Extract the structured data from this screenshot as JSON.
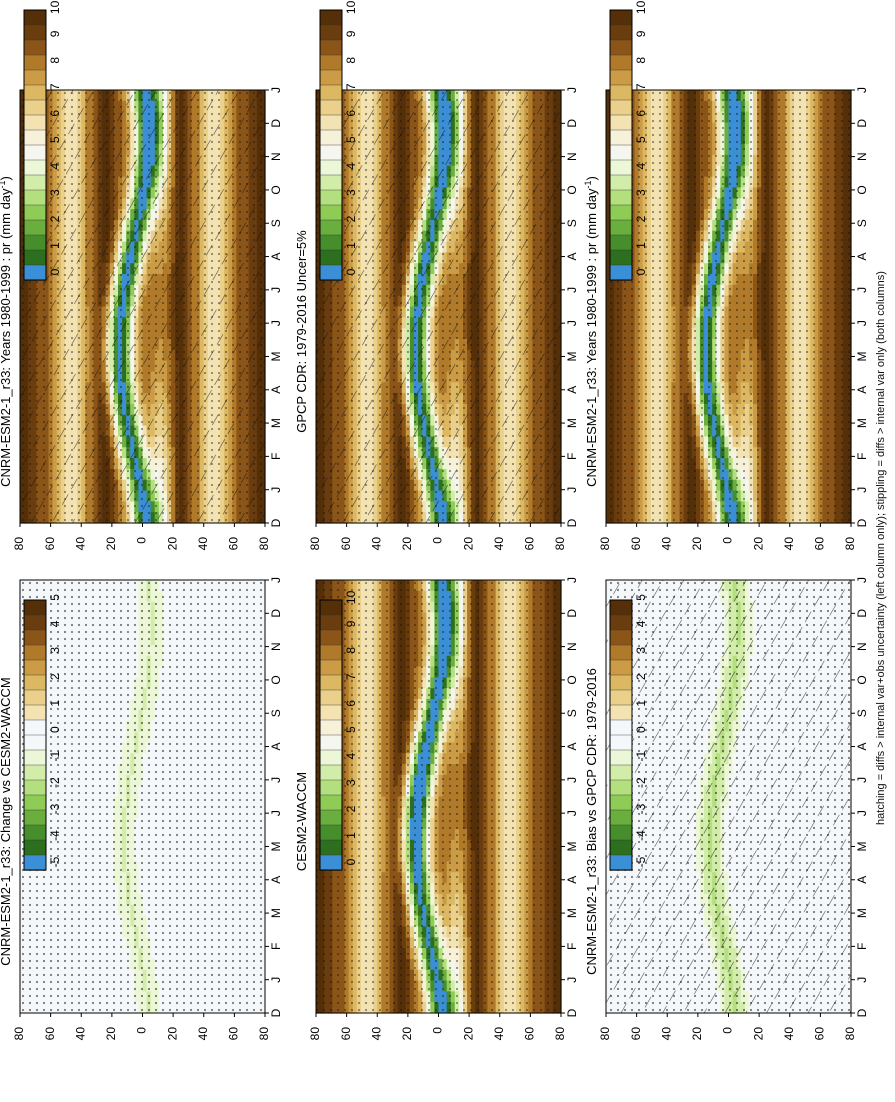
{
  "footnote": "hatching = diffs > internal var+obs uncertainty (left column only); stippling = diffs > internal var only (both columns)",
  "axes": {
    "months": [
      "D",
      "J",
      "F",
      "M",
      "A",
      "M",
      "J",
      "J",
      "A",
      "S",
      "O",
      "N",
      "D",
      "J"
    ],
    "lat_ticks": [
      "80",
      "60",
      "40",
      "20",
      "0",
      "20",
      "40",
      "60",
      "80"
    ]
  },
  "palettes": {
    "precip": [
      "#542f08",
      "#6a3d0f",
      "#8c5518",
      "#b07a2a",
      "#cb9c45",
      "#ddb862",
      "#ead08a",
      "#f3e2b2",
      "#f8f1d9",
      "#f6f6f0",
      "#ecf7d7",
      "#d2edaa",
      "#b3df7e",
      "#8fcc55",
      "#6aae3e",
      "#468e2c",
      "#2c6f1e",
      "#3b8fd6"
    ],
    "diff": [
      "#542f08",
      "#6a3d0f",
      "#8c5518",
      "#b07a2a",
      "#cb9c45",
      "#ddb862",
      "#ead08a",
      "#f3e2b2",
      "#f5f8fb",
      "#f5f8fb",
      "#ecf7d7",
      "#d2edaa",
      "#b3df7e",
      "#8fcc55",
      "#6aae3e",
      "#468e2c",
      "#2c6f1e",
      "#3b8fd6"
    ]
  },
  "chart_data": [
    {
      "type": "heatmap",
      "title": "CNRM-ESM2-1_r33: Years 1980-1999 : pr (mm day",
      "title_sup": "-1",
      "title_end": ")",
      "x": [
        "D",
        "J",
        "F",
        "M",
        "A",
        "M",
        "J",
        "J",
        "A",
        "S",
        "O",
        "N",
        "D",
        "J"
      ],
      "colorbar_ticks": [
        "0",
        "1",
        "2",
        "3",
        "4",
        "5",
        "6",
        "7",
        "8",
        "9",
        "10"
      ],
      "palette": "precip",
      "hatching": true,
      "stippling": true
    },
    {
      "type": "heatmap",
      "title": "CNRM-ESM2-1_r33: Years 1980-1999 : pr (mm day",
      "title_sup": "-1",
      "title_end": ")",
      "x": [
        "D",
        "J",
        "F",
        "M",
        "A",
        "M",
        "J",
        "J",
        "A",
        "S",
        "O",
        "N",
        "D",
        "J"
      ],
      "colorbar_ticks": [
        "0",
        "1",
        "2",
        "3",
        "4",
        "5",
        "6",
        "7",
        "8",
        "9",
        "10"
      ],
      "palette": "precip",
      "hatching": false,
      "stippling": true
    },
    {
      "type": "heatmap",
      "title": "GPCP CDR: 1979-2016 Uncer=5%",
      "x": [
        "D",
        "J",
        "F",
        "M",
        "A",
        "M",
        "J",
        "J",
        "A",
        "S",
        "O",
        "N",
        "D",
        "J"
      ],
      "colorbar_ticks": [
        "0",
        "1",
        "2",
        "3",
        "4",
        "5",
        "6",
        "7",
        "8",
        "9",
        "10"
      ],
      "palette": "precip",
      "hatching": true,
      "stippling": true
    },
    {
      "type": "heatmap",
      "title": "CESM2-WACCM",
      "x": [
        "D",
        "J",
        "F",
        "M",
        "A",
        "M",
        "J",
        "J",
        "A",
        "S",
        "O",
        "N",
        "D",
        "J"
      ],
      "colorbar_ticks": [
        "0",
        "1",
        "2",
        "3",
        "4",
        "5",
        "6",
        "7",
        "8",
        "9",
        "10"
      ],
      "palette": "precip",
      "hatching": false,
      "stippling": true
    },
    {
      "type": "heatmap",
      "title": "CNRM-ESM2-1_r33: Bias vs GPCP CDR: 1979-2016",
      "x": [
        "D",
        "J",
        "F",
        "M",
        "A",
        "M",
        "J",
        "J",
        "A",
        "S",
        "O",
        "N",
        "D",
        "J"
      ],
      "colorbar_ticks": [
        "-5",
        "-4",
        "-3",
        "-2",
        "-1",
        "0",
        "1",
        "2",
        "3",
        "4",
        "5"
      ],
      "palette": "diff",
      "hatching": true,
      "stippling": true
    },
    {
      "type": "heatmap",
      "title": "CNRM-ESM2-1_r33: Change vs CESM2-WACCM",
      "x": [
        "D",
        "J",
        "F",
        "M",
        "A",
        "M",
        "J",
        "J",
        "A",
        "S",
        "O",
        "N",
        "D",
        "J"
      ],
      "colorbar_ticks": [
        "-5",
        "-4",
        "-3",
        "-2",
        "-1",
        "0",
        "1",
        "2",
        "3",
        "4",
        "5"
      ],
      "palette": "diff",
      "hatching": false,
      "stippling": true
    }
  ]
}
